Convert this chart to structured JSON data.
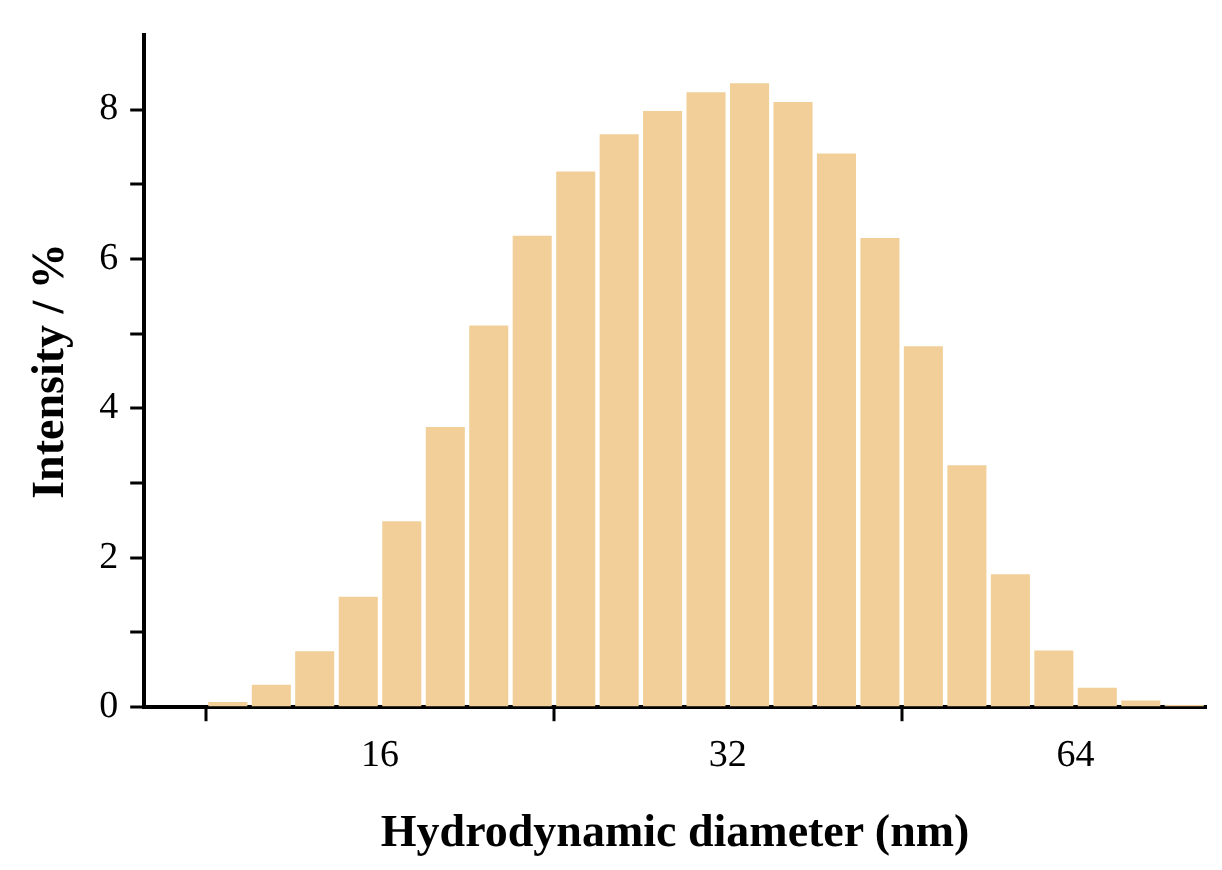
{
  "chart_data": {
    "type": "histogram",
    "xlabel": "Hydrodynamic diameter (nm)",
    "ylabel": "Intensity / %",
    "log": "x",
    "bins": [
      11.31,
      12.34,
      13.45,
      14.67,
      16,
      17.45,
      19.03,
      20.75,
      22.63,
      24.68,
      26.91,
      29.34,
      32,
      34.9,
      38.05,
      41.5,
      45.25,
      49.35,
      53.82,
      58.69,
      64,
      69.79,
      76.11,
      83
    ],
    "values": [
      0.07,
      0.3,
      0.75,
      1.48,
      2.49,
      3.75,
      5.11,
      6.31,
      7.17,
      7.67,
      7.98,
      8.23,
      8.35,
      8.1,
      7.41,
      6.28,
      4.83,
      3.24,
      1.78,
      0.76,
      0.26,
      0.09,
      0.03
    ],
    "color": "#f2cf98",
    "xlim": [
      10,
      83
    ],
    "xticks": [
      16,
      32,
      64
    ],
    "ylim": [
      0,
      9
    ],
    "yticks": [
      0,
      {
        "value": 1,
        "label": null
      },
      2,
      {
        "value": 3,
        "label": null
      },
      4,
      {
        "value": 5,
        "label": null
      },
      6,
      {
        "value": 7,
        "label": null
      },
      8
    ],
    "grid": false,
    "legend": false
  }
}
